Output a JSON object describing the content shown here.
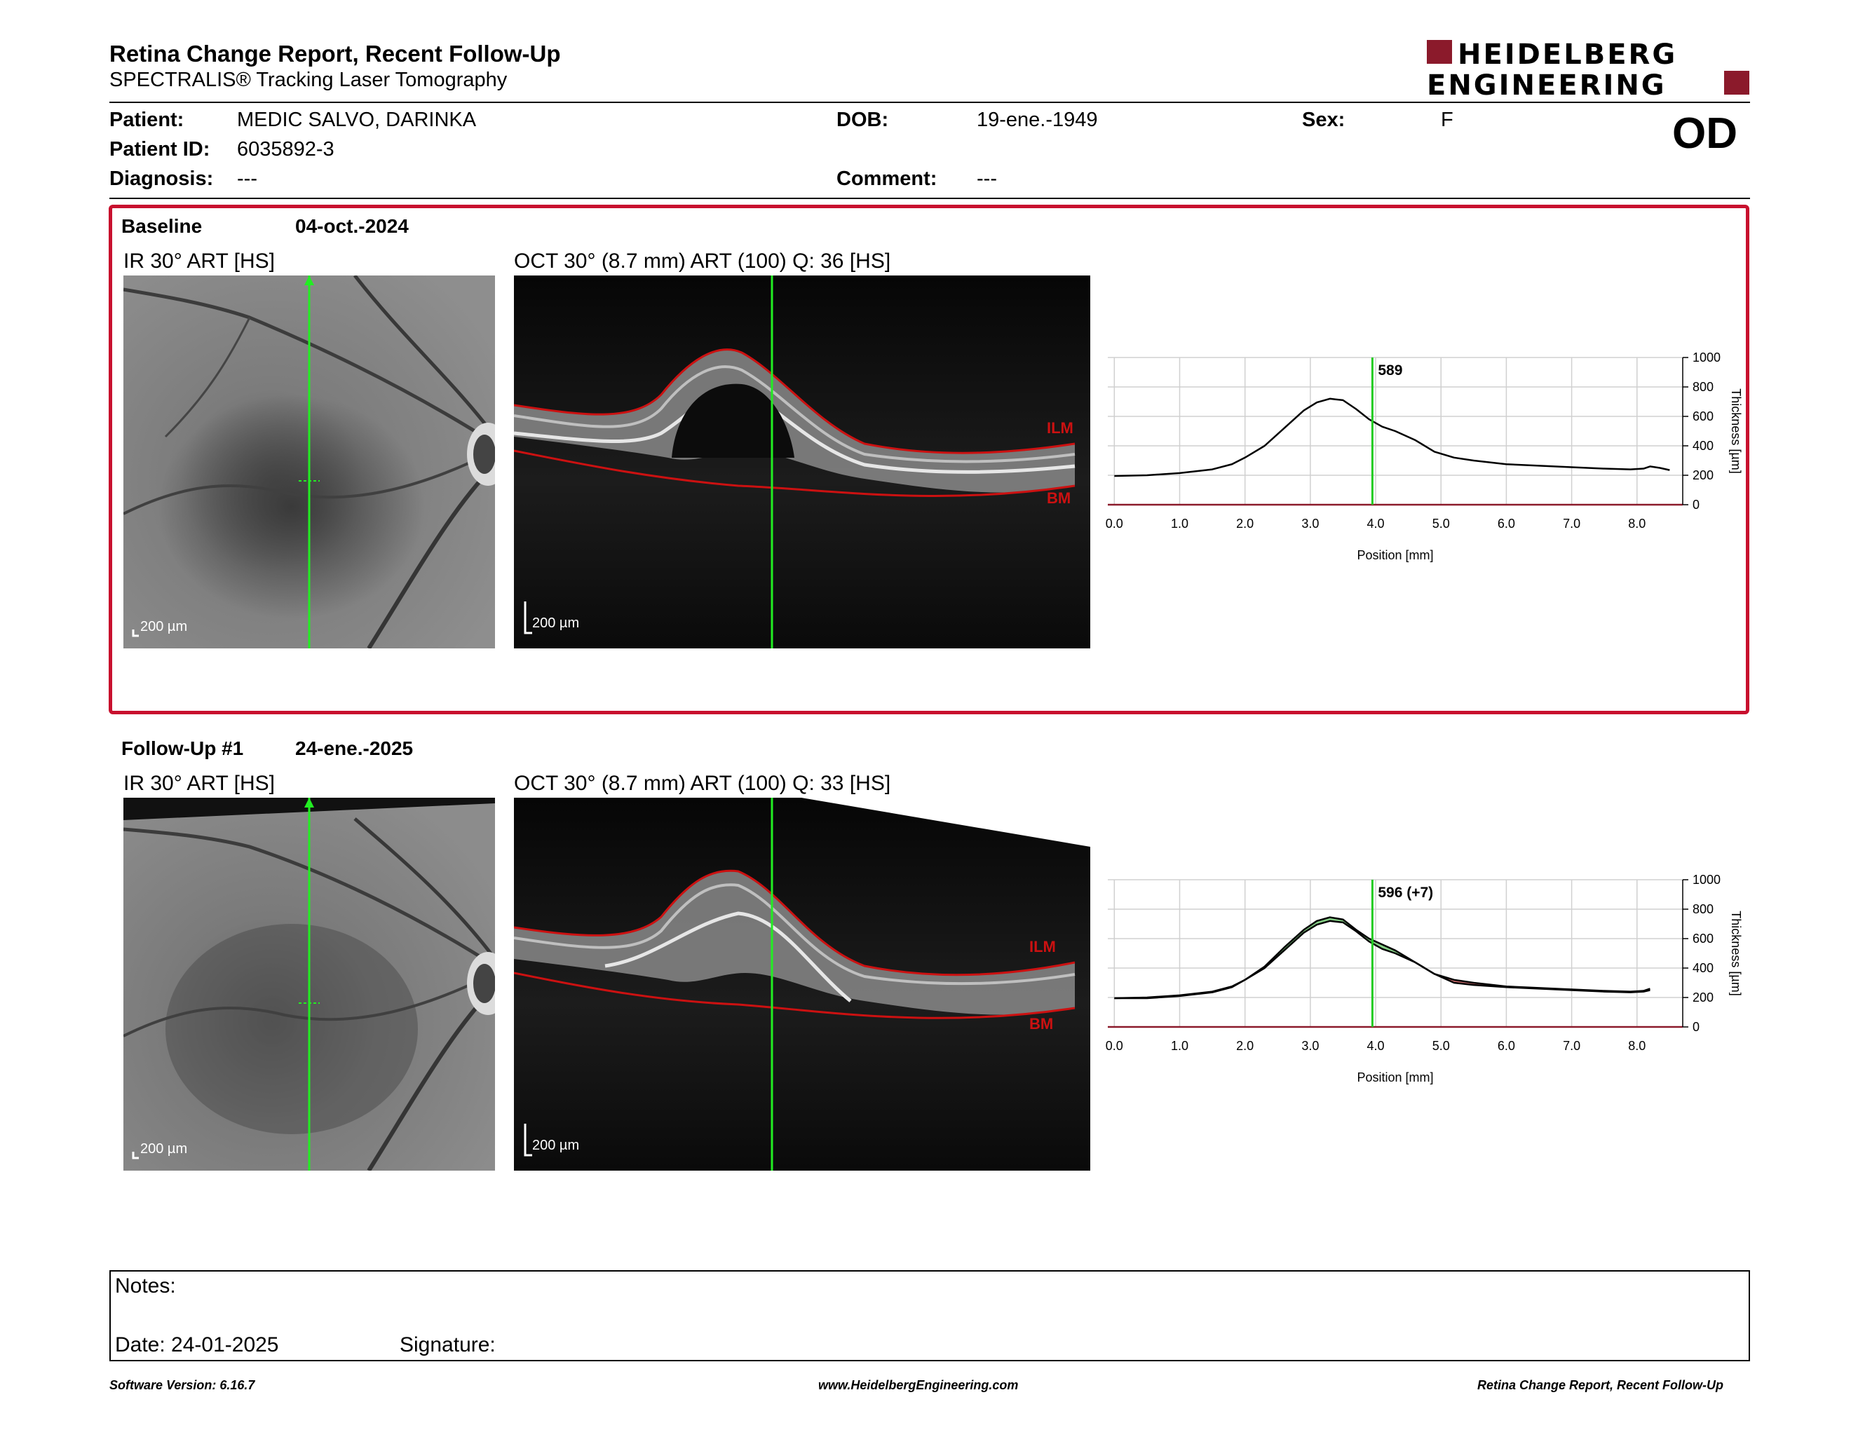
{
  "header": {
    "title": "Retina Change Report, Recent Follow-Up",
    "subtitle": "SPECTRALIS® Tracking Laser Tomography",
    "logo_line1": "HEIDELBERG",
    "logo_line2": "ENGINEERING",
    "logo_color": "#8b1a2b"
  },
  "patient": {
    "patient_label": "Patient:",
    "patient_value": "MEDIC SALVO, DARINKA",
    "id_label": "Patient ID:",
    "id_value": "6035892-3",
    "diagnosis_label": "Diagnosis:",
    "diagnosis_value": "---",
    "dob_label": "DOB:",
    "dob_value": "19-ene.-1949",
    "comment_label": "Comment:",
    "comment_value": "---",
    "sex_label": "Sex:",
    "sex_value": "F",
    "eye": "OD"
  },
  "baseline": {
    "label": "Baseline",
    "date": "04-oct.-2024",
    "ir_title": "IR 30° ART [HS]",
    "oct_title": "OCT 30° (8.7 mm) ART (100) Q: 36 [HS]",
    "ir_scale": "200 µm",
    "oct_scale": "200 µm",
    "ilm_label": "ILM",
    "bm_label": "BM",
    "frame_color": "#c8102e"
  },
  "followup": {
    "label": "Follow-Up #1",
    "date": "24-ene.-2025",
    "ir_title": "IR 30° ART [HS]",
    "oct_title": "OCT 30° (8.7 mm) ART (100) Q: 33 [HS]",
    "ir_scale": "200 µm",
    "oct_scale": "200 µm",
    "ilm_label": "ILM",
    "bm_label": "BM"
  },
  "chart_data": [
    {
      "type": "line",
      "xlabel": "Position [mm]",
      "ylabel": "Thickness [µm]",
      "xlim": [
        -0.1,
        8.7
      ],
      "ylim": [
        0,
        1000
      ],
      "xticks": [
        "0.0",
        "1.0",
        "2.0",
        "3.0",
        "4.0",
        "5.0",
        "6.0",
        "7.0",
        "8.0"
      ],
      "yticks": [
        "0",
        "200",
        "400",
        "600",
        "800",
        "1000"
      ],
      "grid": true,
      "marker_x": 3.95,
      "marker_label": "589",
      "series": [
        {
          "color": "#000000",
          "x": [
            0.0,
            0.5,
            1.0,
            1.5,
            1.8,
            2.0,
            2.3,
            2.6,
            2.9,
            3.1,
            3.3,
            3.5,
            3.7,
            3.9,
            4.1,
            4.3,
            4.6,
            4.9,
            5.2,
            5.5,
            6.0,
            6.5,
            7.0,
            7.5,
            7.9,
            8.1,
            8.2,
            8.35,
            8.5
          ],
          "y": [
            195,
            200,
            215,
            240,
            275,
            320,
            400,
            520,
            640,
            695,
            720,
            710,
            650,
            580,
            530,
            500,
            440,
            360,
            320,
            300,
            275,
            265,
            255,
            245,
            240,
            245,
            260,
            250,
            235
          ]
        }
      ]
    },
    {
      "type": "line",
      "xlabel": "Position [mm]",
      "ylabel": "Thickness [µm]",
      "xlim": [
        -0.1,
        8.7
      ],
      "ylim": [
        0,
        1000
      ],
      "xticks": [
        "0.0",
        "1.0",
        "2.0",
        "3.0",
        "4.0",
        "5.0",
        "6.0",
        "7.0",
        "8.0"
      ],
      "yticks": [
        "0",
        "200",
        "400",
        "600",
        "800",
        "1000"
      ],
      "grid": true,
      "marker_x": 3.95,
      "marker_label": "596 (+7)",
      "increase_color": "#5cbf5c",
      "decrease_color": "#c0393b",
      "series": [
        {
          "color": "#000000",
          "x": [
            0.0,
            0.5,
            1.0,
            1.5,
            1.8,
            2.0,
            2.3,
            2.6,
            2.9,
            3.1,
            3.3,
            3.5,
            3.7,
            3.9,
            4.1,
            4.3,
            4.6,
            4.9,
            5.2,
            5.5,
            6.0,
            6.5,
            7.0,
            7.5,
            7.9,
            8.1,
            8.2
          ],
          "y": [
            195,
            195,
            210,
            235,
            270,
            320,
            410,
            540,
            660,
            720,
            745,
            730,
            660,
            600,
            560,
            520,
            440,
            360,
            300,
            285,
            270,
            260,
            250,
            240,
            235,
            240,
            250
          ]
        },
        {
          "color": "#000000",
          "x": [
            0.0,
            0.5,
            1.0,
            1.5,
            1.8,
            2.0,
            2.3,
            2.6,
            2.9,
            3.1,
            3.3,
            3.5,
            3.7,
            3.9,
            4.1,
            4.3,
            4.6,
            4.9,
            5.2,
            5.5,
            6.0,
            6.5,
            7.0,
            7.5,
            7.9,
            8.1,
            8.2
          ],
          "y": [
            195,
            200,
            215,
            240,
            275,
            320,
            400,
            520,
            640,
            695,
            720,
            710,
            650,
            580,
            530,
            500,
            440,
            360,
            320,
            300,
            275,
            265,
            255,
            245,
            240,
            245,
            260
          ]
        }
      ]
    }
  ],
  "notes": {
    "notes_label": "Notes:",
    "date_label": "Date: 24-01-2025",
    "signature_label": "Signature:"
  },
  "footer": {
    "left": "Software Version: 6.16.7",
    "center": "www.HeidelbergEngineering.com",
    "right": "Retina Change Report, Recent Follow-Up"
  },
  "overlay_colors": {
    "scan_line": "#22ee22",
    "segmentation": "#cc1111"
  }
}
